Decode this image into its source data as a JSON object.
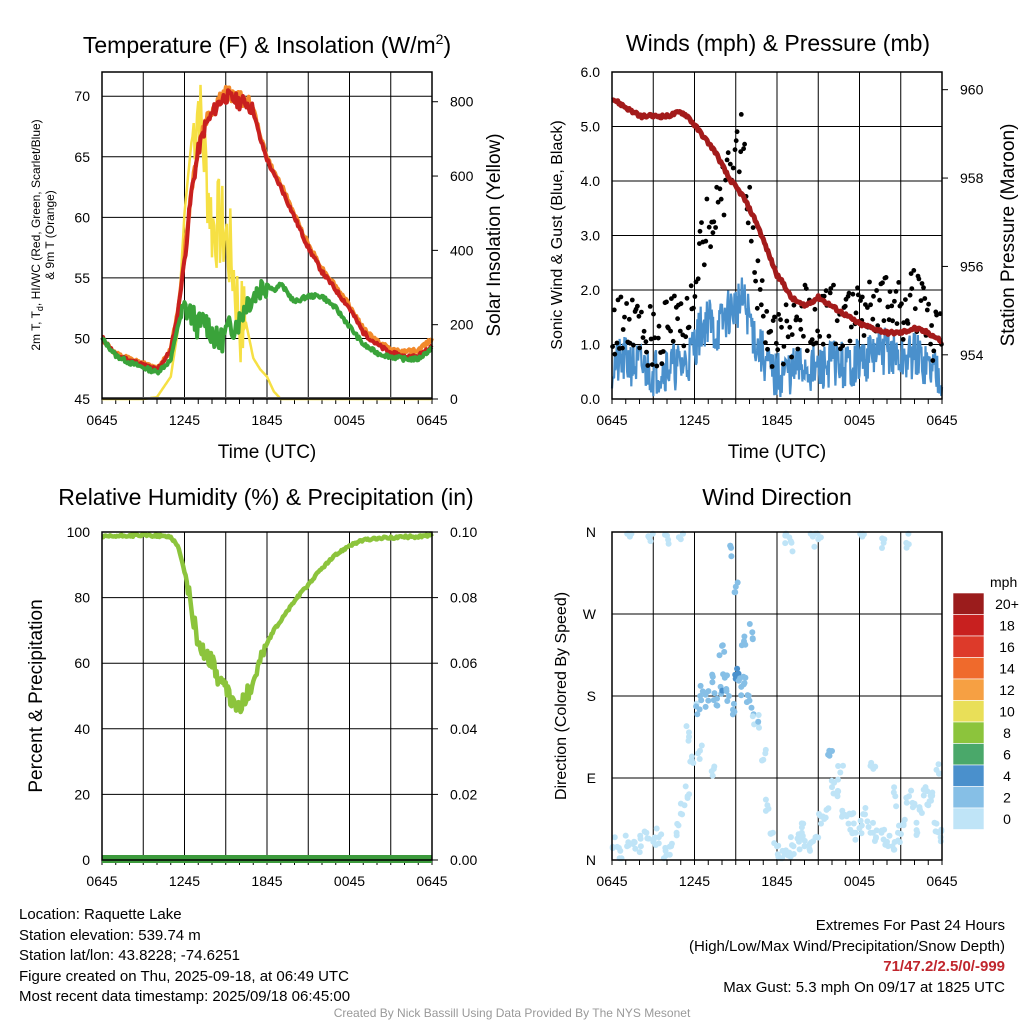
{
  "colors": {
    "temp": "#c8201f",
    "dewpoint": "#3aa33a",
    "heat_index": "#d21c1c",
    "temp9m": "#f28a2b",
    "insolation": "#f6e044",
    "wind": "#4a90cc",
    "gust": "#000000",
    "pressure": "#a31b1b",
    "rh": "#8cc43c",
    "precip": "#3c9a3c",
    "extremes": "#c0262d",
    "credit": "#999999"
  },
  "panels": {
    "temperature": {
      "title_main": "Temperature (F) & Insolation (W/m",
      "title_sup": "2",
      "title_close": ")",
      "xlabel": "Time (UTC)",
      "ylabel_left_l1": "2m T, T",
      "ylabel_left_sub": "d",
      "ylabel_left_l1b": ", HI/WC (Red, Green, Scarlet/Blue)",
      "ylabel_left_l2": "& 9m T (Orange)",
      "ylabel_right": "Solar Insolation (Yellow)"
    },
    "winds": {
      "title": "Winds (mph) & Pressure (mb)",
      "xlabel": "Time (UTC)",
      "ylabel_left": "Sonic Wind & Gust (Blue, Black)",
      "ylabel_right": "Station Pressure (Maroon)"
    },
    "humidity": {
      "title": "Relative Humidity (%) & Precipitation (in)",
      "ylabel_left": "Percent & Precipitation"
    },
    "direction": {
      "title": "Wind Direction",
      "ylabel": "Direction (Colored By Speed)"
    }
  },
  "legend": {
    "unit": "mph",
    "labels": [
      "20+",
      "18",
      "16",
      "14",
      "12",
      "10",
      "8",
      "6",
      "4",
      "2",
      "0"
    ],
    "colors": [
      "#9b1c1c",
      "#c8201f",
      "#dd3a2a",
      "#ef6a2c",
      "#f6a043",
      "#e9df58",
      "#8cc43c",
      "#4aa86a",
      "#4a90cc",
      "#86bfe6",
      "#bfe4f7"
    ]
  },
  "chart_data": [
    {
      "type": "line",
      "title": "Temperature (F) & Insolation (W/m2)",
      "xlabel": "Time (UTC)",
      "ylabel": "2m T, Td, HI/WC (Red, Green, Scarlet/Blue) & 9m T (Orange)",
      "y2label": "Solar Insolation (Yellow)",
      "x_ticks": [
        "0645",
        "1245",
        "1845",
        "0045",
        "0645"
      ],
      "ylim": [
        45,
        72
      ],
      "y_ticks": [
        45,
        50,
        55,
        60,
        65,
        70
      ],
      "y2lim": [
        0,
        880
      ],
      "y2_ticks": [
        0,
        200,
        400,
        600,
        800
      ],
      "x_hours": [
        0,
        1,
        2,
        3,
        4,
        5,
        5.5,
        6,
        6.5,
        7,
        7.5,
        8,
        8.5,
        9,
        9.5,
        10,
        10.5,
        11,
        11.5,
        12,
        12.5,
        13,
        14,
        15,
        16,
        17,
        18,
        19,
        20,
        21,
        22,
        23,
        24
      ],
      "series": [
        {
          "name": "2m T",
          "values": [
            50.1,
            48.6,
            48.2,
            47.8,
            47.4,
            49.0,
            52.0,
            56.5,
            62.0,
            65.5,
            67.5,
            68.5,
            69.5,
            70.0,
            69.8,
            69.5,
            69.5,
            68.8,
            66.5,
            64.8,
            63.5,
            62.5,
            60.0,
            57.5,
            55.5,
            54.0,
            52.5,
            50.5,
            49.5,
            48.8,
            48.5,
            48.5,
            49.5
          ]
        },
        {
          "name": "9m T",
          "values": [
            50.0,
            48.7,
            48.3,
            47.9,
            47.5,
            49.1,
            52.2,
            56.8,
            62.3,
            65.8,
            67.9,
            68.9,
            69.8,
            70.3,
            70.1,
            69.8,
            69.7,
            69.0,
            66.8,
            65.0,
            63.7,
            62.8,
            60.2,
            57.8,
            55.8,
            54.3,
            52.7,
            50.8,
            49.8,
            49.1,
            48.9,
            49.0,
            50.0
          ]
        },
        {
          "name": "Td",
          "values": [
            50.0,
            48.6,
            48.0,
            47.6,
            47.2,
            48.2,
            51.0,
            52.5,
            52.0,
            51.0,
            51.5,
            50.5,
            49.5,
            50.5,
            51.0,
            51.5,
            53.0,
            53.5,
            54.2,
            54.5,
            54.0,
            54.5,
            53.0,
            53.5,
            53.5,
            52.5,
            51.0,
            49.5,
            48.8,
            48.5,
            48.3,
            48.3,
            49.2
          ]
        },
        {
          "name": "Solar Insolation",
          "y_axis": "right",
          "values": [
            0,
            0,
            0,
            0,
            5,
            60,
            180,
            500,
            690,
            800,
            640,
            470,
            470,
            440,
            360,
            210,
            200,
            110,
            80,
            60,
            20,
            0,
            0,
            0,
            0,
            0,
            0,
            0,
            0,
            0,
            0,
            0,
            0
          ]
        }
      ]
    },
    {
      "type": "line",
      "title": "Winds (mph) & Pressure (mb)",
      "xlabel": "Time (UTC)",
      "ylabel": "Sonic Wind & Gust (Blue, Black)",
      "y2label": "Station Pressure (Maroon)",
      "x_ticks": [
        "0645",
        "1245",
        "1845",
        "0045",
        "0645"
      ],
      "ylim": [
        0,
        6
      ],
      "y_ticks": [
        "0.0",
        "1.0",
        "2.0",
        "3.0",
        "4.0",
        "5.0",
        "6.0"
      ],
      "y2lim": [
        953.0,
        960.4
      ],
      "y2_ticks": [
        954,
        956,
        958,
        960
      ],
      "x_hours": [
        0,
        1,
        2,
        3,
        4,
        5,
        5.5,
        6,
        6.5,
        7,
        7.5,
        8,
        8.5,
        9,
        9.5,
        10,
        10.5,
        11,
        11.5,
        12,
        12.5,
        13,
        14,
        15,
        16,
        17,
        18,
        19,
        20,
        21,
        22,
        23,
        24
      ],
      "series": [
        {
          "name": "Sonic Wind",
          "values": [
            0.6,
            0.7,
            0.6,
            0.5,
            0.6,
            0.6,
            0.7,
            1.0,
            1.3,
            1.5,
            1.2,
            1.4,
            1.6,
            1.7,
            1.8,
            1.5,
            1.0,
            0.8,
            0.5,
            0.4,
            0.5,
            0.5,
            0.6,
            0.5,
            0.7,
            0.6,
            0.7,
            0.8,
            0.9,
            0.7,
            0.8,
            0.6,
            0.5
          ]
        },
        {
          "name": "Gust",
          "values": [
            1.2,
            1.4,
            1.3,
            1.1,
            1.3,
            1.3,
            1.4,
            2.2,
            2.8,
            3.2,
            3.5,
            3.8,
            4.2,
            4.6,
            4.8,
            3.5,
            2.2,
            1.6,
            1.2,
            1.0,
            1.1,
            1.2,
            1.5,
            1.3,
            1.6,
            1.4,
            1.7,
            1.8,
            1.9,
            1.6,
            1.8,
            1.4,
            1.1
          ]
        },
        {
          "name": "Station Pressure",
          "y_axis": "right",
          "values": [
            959.8,
            959.6,
            959.4,
            959.4,
            959.4,
            959.5,
            959.4,
            959.2,
            959.0,
            958.8,
            958.6,
            958.3,
            958.0,
            957.8,
            957.6,
            957.3,
            957.0,
            956.6,
            956.2,
            955.8,
            955.6,
            955.3,
            955.1,
            955.3,
            955.1,
            954.9,
            954.7,
            954.6,
            954.5,
            954.5,
            954.6,
            954.5,
            954.3
          ]
        }
      ]
    },
    {
      "type": "line",
      "title": "Relative Humidity (%) & Precipitation (in)",
      "ylabel": "Percent & Precipitation",
      "x_ticks": [
        "0645",
        "1245",
        "1845",
        "0045",
        "0645"
      ],
      "ylim": [
        0,
        100
      ],
      "y_ticks": [
        0,
        20,
        40,
        60,
        80,
        100
      ],
      "y2lim": [
        0,
        0.1
      ],
      "y2_ticks": [
        "0.00",
        "0.02",
        "0.04",
        "0.06",
        "0.08",
        "0.10"
      ],
      "x_hours": [
        0,
        1,
        2,
        3,
        4,
        5,
        5.5,
        6,
        6.5,
        7,
        7.5,
        8,
        8.5,
        9,
        9.5,
        10,
        10.5,
        11,
        11.5,
        12,
        12.5,
        13,
        14,
        15,
        16,
        17,
        18,
        19,
        20,
        21,
        22,
        23,
        24
      ],
      "series": [
        {
          "name": "Relative Humidity",
          "values": [
            98.5,
            98.7,
            98.9,
            99.0,
            98.9,
            98.5,
            96.0,
            88.0,
            77.0,
            66.0,
            63.0,
            60.5,
            55.0,
            52.0,
            48.0,
            46.0,
            50.0,
            55.0,
            61.0,
            66.0,
            70.0,
            73.0,
            79.0,
            84.0,
            89.0,
            93.0,
            96.0,
            97.5,
            98.0,
            98.3,
            98.5,
            98.6,
            99.0
          ]
        },
        {
          "name": "Precipitation",
          "y_axis": "right",
          "values": [
            0,
            0,
            0,
            0,
            0,
            0,
            0,
            0,
            0,
            0,
            0,
            0,
            0,
            0,
            0,
            0,
            0,
            0,
            0,
            0,
            0,
            0,
            0,
            0,
            0,
            0,
            0,
            0,
            0,
            0,
            0,
            0,
            0
          ]
        }
      ]
    },
    {
      "type": "scatter",
      "title": "Wind Direction",
      "ylabel": "Direction (Colored By Speed)",
      "x_ticks": [
        "0645",
        "1245",
        "1845",
        "0045",
        "0645"
      ],
      "y_ticks": [
        "N",
        "E",
        "S",
        "W",
        "N"
      ],
      "ylim": [
        0,
        360
      ],
      "x_hours": [
        0.2,
        0.6,
        1.1,
        1.6,
        2.1,
        2.5,
        3.0,
        3.4,
        3.9,
        4.3,
        4.7,
        5.1,
        5.5,
        5.8,
        6.2,
        6.6,
        7.0,
        7.3,
        7.6,
        7.9,
        8.2,
        8.5,
        8.8,
        9.1,
        9.4,
        9.7,
        10.0,
        10.3,
        10.6,
        11.0,
        11.3,
        11.7,
        12.0,
        12.4,
        12.8,
        13.2,
        13.6,
        14.0,
        14.4,
        14.8,
        15.2,
        15.6,
        16.0,
        16.4,
        16.8,
        17.2,
        17.6,
        18.0,
        18.4,
        18.8,
        19.2,
        19.6,
        20.0,
        20.4,
        20.8,
        21.2,
        21.6,
        22.0,
        22.4,
        22.8,
        23.2,
        23.6,
        23.9,
        1.3,
        2.8,
        4.0,
        5.0,
        5.6,
        6.4,
        7.4,
        8.0,
        8.6,
        9.0,
        9.6,
        10.2,
        12.6,
        13.0,
        13.8,
        14.6,
        15.0,
        15.8,
        16.6,
        17.4,
        18.2,
        19.0,
        19.8,
        20.6,
        21.4,
        22.2,
        23.0,
        23.8
      ],
      "y_degrees": [
        25,
        10,
        15,
        20,
        15,
        30,
        20,
        25,
        10,
        15,
        30,
        50,
        70,
        110,
        160,
        185,
        175,
        195,
        170,
        190,
        200,
        180,
        165,
        210,
        190,
        200,
        175,
        160,
        150,
        110,
        60,
        30,
        15,
        10,
        5,
        15,
        20,
        15,
        10,
        25,
        40,
        55,
        80,
        70,
        50,
        40,
        30,
        35,
        50,
        30,
        25,
        30,
        20,
        15,
        30,
        40,
        70,
        60,
        55,
        80,
        65,
        40,
        25,
        355,
        350,
        356,
        352,
        140,
        120,
        100,
        235,
        345,
        300,
        240,
        250,
        356,
        350,
        30,
        355,
        352,
        120,
        96,
        50,
        355,
        100,
        352,
        70,
        348,
        30,
        60,
        95
      ],
      "speed_mph": [
        0.8,
        0.9,
        1.0,
        1.1,
        0.9,
        0.8,
        1.0,
        1.0,
        0.9,
        0.8,
        1.0,
        1.1,
        1.2,
        1.5,
        2.0,
        2.5,
        2.8,
        3.5,
        3.2,
        3.8,
        2.5,
        3.0,
        3.2,
        4.2,
        3.0,
        2.5,
        2.2,
        2.0,
        1.8,
        1.5,
        1.2,
        1.0,
        0.9,
        0.8,
        0.9,
        0.8,
        1.0,
        0.9,
        0.8,
        1.0,
        1.1,
        1.0,
        1.2,
        1.1,
        1.3,
        1.2,
        1.0,
        1.1,
        1.2,
        1.0,
        0.9,
        1.0,
        0.8,
        0.9,
        1.0,
        1.1,
        1.3,
        1.2,
        1.1,
        1.3,
        1.2,
        1.0,
        0.9,
        0.8,
        0.9,
        0.9,
        1.0,
        1.4,
        1.2,
        1.6,
        3.0,
        2.6,
        3.5,
        2.8,
        3.0,
        1.0,
        0.9,
        1.0,
        1.2,
        0.9,
        3.5,
        1.1,
        1.0,
        1.0,
        1.2,
        1.1,
        1.0,
        1.5,
        1.0,
        1.1,
        1.2
      ]
    }
  ],
  "info": {
    "location": "Location: Raquette Lake",
    "elevation": "Station elevation: 539.74 m",
    "latlon": "Station lat/lon: 43.8228; -74.6251",
    "created": "Figure created on Thu, 2025-09-18, at 06:49 UTC",
    "recent": "Most recent data timestamp: 2025/09/18 06:45:00"
  },
  "extremes": {
    "title": "Extremes For Past 24 Hours",
    "subtitle": "(High/Low/Max Wind/Precipitation/Snow Depth)",
    "values": "71/47.2/2.5/0/-999",
    "max_gust": "Max Gust: 5.3 mph On 09/17 at 1825 UTC"
  },
  "credit": "Created By Nick Bassill Using Data Provided By The NYS Mesonet"
}
